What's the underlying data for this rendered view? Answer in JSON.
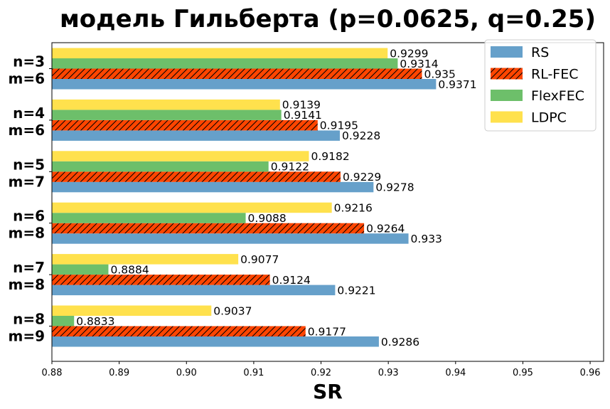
{
  "chart_data": {
    "type": "bar",
    "orientation": "horizontal",
    "title": "модель Гильберта (p=0.0625, q=0.25)",
    "xlabel": "SR",
    "ylabel": "",
    "xlim": [
      0.88,
      0.962
    ],
    "xticks": [
      "0.88",
      "0.89",
      "0.90",
      "0.91",
      "0.92",
      "0.93",
      "0.94",
      "0.95",
      "0.96"
    ],
    "categories": [
      [
        "n=3",
        "m=6"
      ],
      [
        "n=4",
        "m=6"
      ],
      [
        "n=5",
        "m=7"
      ],
      [
        "n=6",
        "m=8"
      ],
      [
        "n=7",
        "m=8"
      ],
      [
        "n=8",
        "m=9"
      ]
    ],
    "series": [
      {
        "name": "RS",
        "color": "#66a0ca",
        "hatch": false,
        "values": [
          0.9371,
          0.9228,
          0.9278,
          0.933,
          0.9221,
          0.9286
        ],
        "labels": [
          "0.9371",
          "0.9228",
          "0.9278",
          "0.933",
          "0.9221",
          "0.9286"
        ]
      },
      {
        "name": "RL-FEC",
        "color": "#ff4500",
        "hatch": true,
        "values": [
          0.935,
          0.9195,
          0.9229,
          0.9264,
          0.9124,
          0.9177
        ],
        "labels": [
          "0.935",
          "0.9195",
          "0.9229",
          "0.9264",
          "0.9124",
          "0.9177"
        ]
      },
      {
        "name": "FlexFEC",
        "color": "#6dbf6a",
        "hatch": false,
        "values": [
          0.9314,
          0.9141,
          0.9122,
          0.9088,
          0.8884,
          0.8833
        ],
        "labels": [
          "0.9314",
          "0.9141",
          "0.9122",
          "0.9088",
          "0.8884",
          "0.8833"
        ]
      },
      {
        "name": "LDPC",
        "color": "#ffe14d",
        "hatch": false,
        "values": [
          0.9299,
          0.9139,
          0.9182,
          0.9216,
          0.9077,
          0.9037
        ],
        "labels": [
          "0.9299",
          "0.9139",
          "0.9182",
          "0.9216",
          "0.9077",
          "0.9037"
        ]
      }
    ],
    "legend_position": "top-right",
    "grid": false
  }
}
